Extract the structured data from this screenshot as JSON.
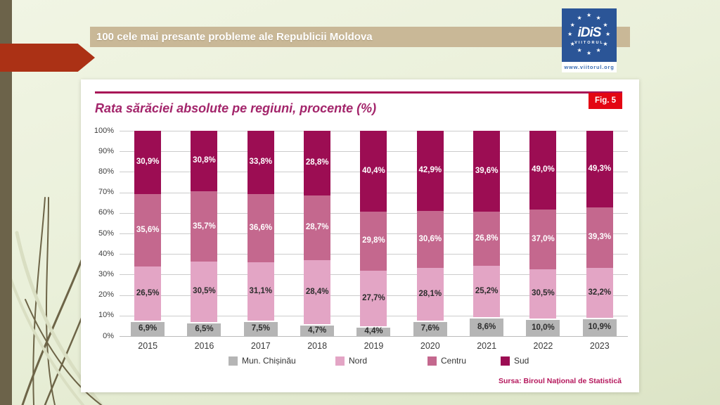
{
  "slide": {
    "header_title": "100 cele mai presante probleme ale Republicii Moldova",
    "logo": {
      "acronym": "iDiS",
      "subtitle": "VIITORUL",
      "url": "www.viitorul.org",
      "star_glyph": "★",
      "emblem_color": "#2b5597"
    }
  },
  "card": {
    "fig_label": "Fig. 5",
    "title": "Rata sărăciei absolute pe regiuni, procente (%)",
    "source": "Sursa: Biroul Național de Statistică"
  },
  "chart_data": {
    "type": "bar",
    "variant": "100-percent-stacked-column",
    "title": "Rata sărăciei absolute pe regiuni, procente (%)",
    "categories": [
      "2015",
      "2016",
      "2017",
      "2018",
      "2019",
      "2020",
      "2021",
      "2022",
      "2023"
    ],
    "series": [
      {
        "name": "Mun. Chișinău",
        "color": "#b5b5b5",
        "label_color": "#2d2d2d",
        "values": [
          6.9,
          6.5,
          7.5,
          4.7,
          4.4,
          7.6,
          8.6,
          10.0,
          10.9
        ]
      },
      {
        "name": "Nord",
        "color": "#e3a5c5",
        "label_color": "#2d2d2d",
        "values": [
          26.5,
          30.5,
          31.1,
          28.4,
          27.7,
          28.1,
          25.2,
          30.5,
          32.2
        ]
      },
      {
        "name": "Centru",
        "color": "#c4688e",
        "label_color": "#ffffff",
        "values": [
          35.6,
          35.7,
          36.6,
          28.7,
          29.8,
          30.6,
          26.8,
          37.0,
          39.3
        ]
      },
      {
        "name": "Sud",
        "color": "#9c0d53",
        "label_color": "#ffffff",
        "values": [
          30.9,
          30.8,
          33.8,
          28.8,
          40.4,
          42.9,
          39.6,
          49.0,
          49.3
        ]
      }
    ],
    "y_ticks": [
      "100%",
      "90%",
      "80%",
      "70%",
      "60%",
      "50%",
      "40%",
      "30%",
      "20%",
      "10%",
      "0%"
    ],
    "ylim": [
      0,
      100
    ],
    "value_label_format": "comma-decimal-percent",
    "grid": true,
    "legend_position": "bottom"
  }
}
